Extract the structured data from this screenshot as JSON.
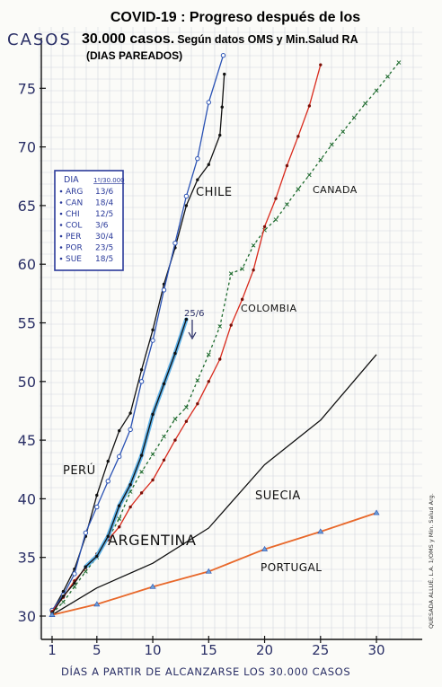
{
  "header": {
    "title_line1": "COVID-19 : Progreso después de los",
    "title_line2_big": "30.000 casos.",
    "title_line2_small": "Según datos OMS y Min.Salud RA",
    "title_line3": "(DIAS PAREADOS)"
  },
  "axes": {
    "ylabel": "CASOS",
    "xlabel": "DÍAS A PARTIR DE ALCANZARSE LOS 30.000 CASOS",
    "credit": "QUESADA ALLUÉ, L.A. 1/OMS y Min. Salud Arg."
  },
  "legend_box": {
    "header_left": "DIA",
    "header_right": "1º/30.000",
    "rows": [
      {
        "country": "ARG",
        "date": "13/6"
      },
      {
        "country": "CAN",
        "date": "18/4"
      },
      {
        "country": "CHI",
        "date": "12/5"
      },
      {
        "country": "COL",
        "date": "3/6"
      },
      {
        "country": "PER",
        "date": "30/4"
      },
      {
        "country": "POR",
        "date": "23/5"
      },
      {
        "country": "SUE",
        "date": "18/5"
      }
    ]
  },
  "annotation": {
    "text": "25/6"
  },
  "chart_data": {
    "type": "line",
    "title": "COVID-19 : Progreso después de los 30.000 casos. Según datos OMS y Min.Salud RA (DIAS PAREADOS)",
    "xlabel": "DÍAS A PARTIR DE ALCANZARSE LOS 30.000 CASOS",
    "ylabel": "CASOS",
    "xlim": [
      0,
      32.5
    ],
    "ylim": [
      28,
      78.5
    ],
    "x_ticks": [
      1,
      5,
      10,
      15,
      20,
      25,
      30
    ],
    "y_ticks": [
      30,
      35,
      40,
      45,
      50,
      55,
      60,
      65,
      70,
      75
    ],
    "grid": true,
    "series": [
      {
        "name": "PERÚ",
        "color": "#111111",
        "points": [
          [
            1,
            30.4
          ],
          [
            2,
            32.1
          ],
          [
            3,
            34.0
          ],
          [
            4,
            36.8
          ],
          [
            5,
            40.3
          ],
          [
            6,
            43.2
          ],
          [
            7,
            45.8
          ],
          [
            8,
            47.3
          ],
          [
            9,
            51.0
          ],
          [
            10,
            54.4
          ],
          [
            11,
            58.3
          ],
          [
            12,
            61.4
          ],
          [
            13,
            65.0
          ],
          [
            14,
            67.2
          ],
          [
            15,
            68.5
          ],
          [
            16,
            71.0
          ],
          [
            16.2,
            73.4
          ],
          [
            16.4,
            76.2
          ]
        ]
      },
      {
        "name": "CHILE",
        "color": "#2a52b4",
        "points": [
          [
            1,
            30.5
          ],
          [
            2,
            31.8
          ],
          [
            3,
            33.6
          ],
          [
            4,
            37.1
          ],
          [
            5,
            39.3
          ],
          [
            6,
            41.5
          ],
          [
            7,
            43.6
          ],
          [
            8,
            45.9
          ],
          [
            9,
            50.0
          ],
          [
            10,
            53.5
          ],
          [
            11,
            57.8
          ],
          [
            12,
            61.8
          ],
          [
            13,
            65.8
          ],
          [
            14,
            69.0
          ],
          [
            15,
            73.8
          ],
          [
            16.3,
            77.8
          ]
        ]
      },
      {
        "name": "CANADA",
        "color": "#1e6b2e",
        "points": [
          [
            1,
            30.2
          ],
          [
            2,
            31.2
          ],
          [
            3,
            32.5
          ],
          [
            4,
            33.8
          ],
          [
            5,
            35.0
          ],
          [
            6,
            36.6
          ],
          [
            7,
            38.3
          ],
          [
            8,
            40.6
          ],
          [
            9,
            42.3
          ],
          [
            10,
            43.8
          ],
          [
            11,
            45.3
          ],
          [
            12,
            46.8
          ],
          [
            13,
            47.8
          ],
          [
            14,
            50.1
          ],
          [
            15,
            52.3
          ],
          [
            16,
            54.7
          ],
          [
            17,
            59.2
          ],
          [
            18,
            59.6
          ],
          [
            19,
            61.6
          ],
          [
            20,
            62.9
          ],
          [
            21,
            63.8
          ],
          [
            22,
            65.1
          ],
          [
            23,
            66.4
          ],
          [
            24,
            67.6
          ],
          [
            25,
            68.9
          ],
          [
            26,
            70.2
          ],
          [
            27,
            71.3
          ],
          [
            28,
            72.5
          ],
          [
            29,
            73.7
          ],
          [
            30,
            74.8
          ],
          [
            31,
            76.0
          ],
          [
            32,
            77.2
          ]
        ]
      },
      {
        "name": "COLOMBIA",
        "color": "#d92a1c",
        "points": [
          [
            1,
            30.4
          ],
          [
            2,
            31.6
          ],
          [
            3,
            33.0
          ],
          [
            4,
            34.1
          ],
          [
            5,
            35.3
          ],
          [
            6,
            36.5
          ],
          [
            7,
            37.6
          ],
          [
            8,
            39.3
          ],
          [
            9,
            40.5
          ],
          [
            10,
            41.6
          ],
          [
            11,
            43.3
          ],
          [
            12,
            45.0
          ],
          [
            13,
            46.6
          ],
          [
            14,
            48.1
          ],
          [
            15,
            50.0
          ],
          [
            16,
            51.9
          ],
          [
            17,
            54.8
          ],
          [
            18,
            57.0
          ],
          [
            19,
            59.5
          ],
          [
            20,
            63.2
          ],
          [
            21,
            65.6
          ],
          [
            22,
            68.4
          ],
          [
            23,
            70.9
          ],
          [
            24,
            73.5
          ],
          [
            25,
            77.0
          ]
        ]
      },
      {
        "name": "ARGENTINA",
        "color": "#111111",
        "highlight": "#5fb2e8",
        "points": [
          [
            1,
            30.2
          ],
          [
            2,
            31.7
          ],
          [
            3,
            32.8
          ],
          [
            4,
            34.2
          ],
          [
            5,
            35.1
          ],
          [
            6,
            36.8
          ],
          [
            7,
            39.4
          ],
          [
            8,
            41.2
          ],
          [
            9,
            43.7
          ],
          [
            10,
            47.2
          ],
          [
            11,
            49.8
          ],
          [
            12,
            52.4
          ],
          [
            13,
            55.3
          ]
        ]
      },
      {
        "name": "SUECIA",
        "color": "#111111",
        "points": [
          [
            1,
            30.1
          ],
          [
            5,
            32.4
          ],
          [
            10,
            34.5
          ],
          [
            15,
            37.5
          ],
          [
            20,
            42.9
          ],
          [
            25,
            46.7
          ],
          [
            30,
            52.3
          ]
        ]
      },
      {
        "name": "PORTUGAL",
        "color": "#e8682a",
        "points": [
          [
            1,
            30.1
          ],
          [
            5,
            31.0
          ],
          [
            10,
            32.5
          ],
          [
            15,
            33.8
          ],
          [
            20,
            35.7
          ],
          [
            25,
            37.2
          ],
          [
            30,
            38.8
          ]
        ]
      }
    ],
    "series_labels": [
      {
        "name": "CHILE",
        "text": "CHILE"
      },
      {
        "name": "CANADA",
        "text": "CANADA"
      },
      {
        "name": "COLOMBIA",
        "text": "COLOMBIA"
      },
      {
        "name": "PERÚ",
        "text": "PERÚ"
      },
      {
        "name": "SUECIA",
        "text": "SUECIA"
      },
      {
        "name": "ARGENTINA",
        "text": "ARGENTINA"
      },
      {
        "name": "PORTUGAL",
        "text": "PORTUGAL"
      }
    ]
  }
}
